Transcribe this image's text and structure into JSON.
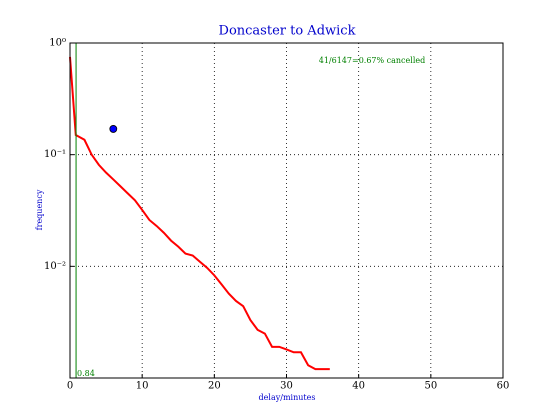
{
  "chart_data": {
    "type": "line",
    "title": "Doncaster to Adwick",
    "xlabel": "delay/minutes",
    "ylabel": "frequency",
    "annotation": "41/6147=0.67% cancelled",
    "xlim": [
      0,
      60
    ],
    "xticks": [
      0,
      10,
      20,
      30,
      40,
      50,
      60
    ],
    "ylim": [
      0.001,
      1
    ],
    "yticks": [
      {
        "value": 1,
        "label": "10⁰"
      },
      {
        "value": 0.1,
        "label": "10⁻¹"
      },
      {
        "value": 0.01,
        "label": "10⁻²"
      }
    ],
    "log_y": true,
    "grid": true,
    "x": [
      0,
      0.8,
      2,
      3,
      4,
      5,
      6,
      7,
      8,
      9,
      10,
      11,
      12,
      13,
      14,
      15,
      16,
      17,
      18,
      19,
      20,
      21,
      22,
      23,
      24,
      25,
      26,
      27,
      28,
      29,
      30,
      31,
      32,
      33,
      34,
      36
    ],
    "series": [
      {
        "color": "#ff0000",
        "values": [
          0.75,
          0.15,
          0.136,
          0.1,
          0.081,
          0.069,
          0.06,
          0.052,
          0.045,
          0.039,
          0.032,
          0.026,
          0.023,
          0.02,
          0.017,
          0.015,
          0.013,
          0.0125,
          0.011,
          0.0097,
          0.0083,
          0.0069,
          0.0057,
          0.0049,
          0.0044,
          0.0033,
          0.0027,
          0.0025,
          0.0019,
          0.0019,
          0.0018,
          0.0017,
          0.0017,
          0.0013,
          0.0012,
          0.0012
        ]
      }
    ],
    "vline": {
      "x": 0.84,
      "color": "#008000"
    },
    "point": {
      "x": 6,
      "y": 0.17,
      "color": "#0000ff"
    }
  }
}
